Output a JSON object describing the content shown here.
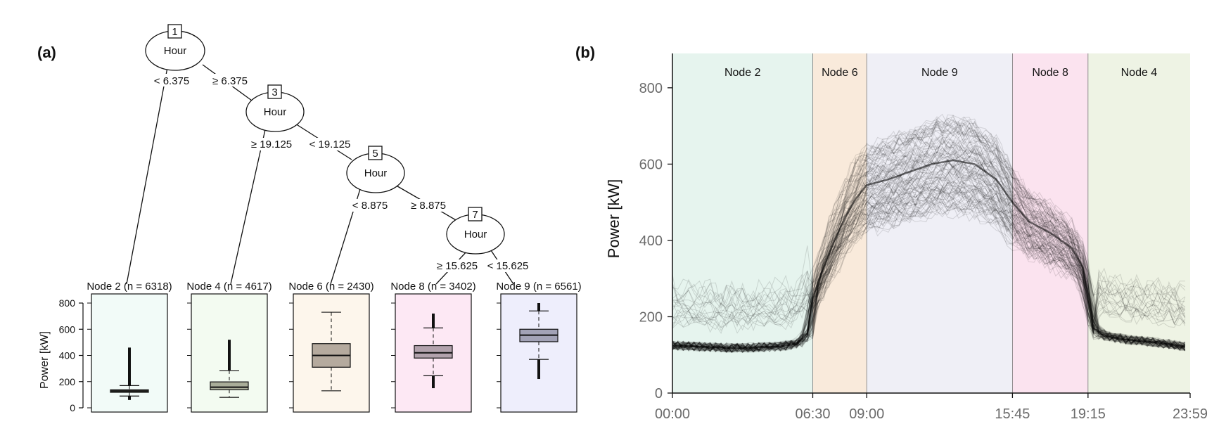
{
  "panels": {
    "a": "(a)",
    "b": "(b)"
  },
  "tree": {
    "nodes": [
      {
        "id": "1",
        "label": "Hour"
      },
      {
        "id": "3",
        "label": "Hour"
      },
      {
        "id": "5",
        "label": "Hour"
      },
      {
        "id": "7",
        "label": "Hour"
      }
    ],
    "splits": {
      "n1_left": "< 6.375",
      "n1_right": "≥ 6.375",
      "n3_left": "≥ 19.125",
      "n3_right": "< 19.125",
      "n5_left": "< 8.875",
      "n5_right": "≥ 8.875",
      "n7_left": "≥ 15.625",
      "n7_right": "< 15.625"
    }
  },
  "chart_data": [
    {
      "type": "box",
      "ylabel": "Power [kW]",
      "ylim": [
        0,
        900
      ],
      "yticks": [
        "0",
        "200",
        "400",
        "600",
        "800"
      ],
      "terminal_nodes": [
        {
          "label": "Node 2 (n = 6318)",
          "color": "#f2fbf8",
          "fill": "#8c8c7c",
          "whisker_low": 90,
          "q1": 118,
          "median": 128,
          "q3": 138,
          "whisker_high": 170,
          "outlier_low": 60,
          "outlier_high": 460
        },
        {
          "label": "Node 4 (n = 4617)",
          "color": "#f3fbf1",
          "fill": "#a9ad99",
          "whisker_low": 80,
          "q1": 138,
          "median": 158,
          "q3": 198,
          "whisker_high": 285,
          "outlier_low": 80,
          "outlier_high": 520
        },
        {
          "label": "Node 6 (n = 2430)",
          "color": "#fdf6ec",
          "fill": "#b5aa9e",
          "whisker_low": 130,
          "q1": 310,
          "median": 400,
          "q3": 490,
          "whisker_high": 730,
          "outlier_low": 130,
          "outlier_high": 730
        },
        {
          "label": "Node 8 (n = 3402)",
          "color": "#fde8f4",
          "fill": "#b2a2ac",
          "whisker_low": 245,
          "q1": 380,
          "median": 420,
          "q3": 475,
          "whisker_high": 610,
          "outlier_low": 150,
          "outlier_high": 720
        },
        {
          "label": "Node 9 (n = 6561)",
          "color": "#eeeefc",
          "fill": "#a2a2b6",
          "whisker_low": 370,
          "q1": 505,
          "median": 555,
          "q3": 600,
          "whisker_high": 740,
          "outlier_low": 220,
          "outlier_high": 800
        }
      ]
    },
    {
      "type": "line",
      "ylabel": "Power [kW]",
      "ylim": [
        0,
        890
      ],
      "yticks": [
        "0",
        "200",
        "400",
        "600",
        "800"
      ],
      "xticks": [
        "00:00",
        "06:30",
        "09:00",
        "15:45",
        "19:15",
        "23:59"
      ],
      "regions": [
        {
          "name": "Node 2",
          "from": 0,
          "to": 6.5,
          "color": "#e6f4ee"
        },
        {
          "name": "Node 6",
          "from": 6.5,
          "to": 9.0,
          "color": "#f9eadb"
        },
        {
          "name": "Node 9",
          "from": 9.0,
          "to": 15.75,
          "color": "#efeff6"
        },
        {
          "name": "Node 8",
          "from": 15.75,
          "to": 19.25,
          "color": "#fbe3ef"
        },
        {
          "name": "Node 4",
          "from": 19.25,
          "to": 23.98,
          "color": "#eef3e4"
        }
      ],
      "mean_profile": {
        "x": [
          0,
          1,
          2,
          3,
          4,
          5,
          5.8,
          6.3,
          6.5,
          7,
          7.5,
          8,
          8.5,
          9,
          10,
          11,
          12,
          13,
          14,
          15,
          15.75,
          16.5,
          17.5,
          18.5,
          19,
          19.25,
          19.5,
          20,
          21,
          22,
          23,
          23.98
        ],
        "y": [
          125,
          122,
          120,
          118,
          120,
          122,
          130,
          160,
          250,
          330,
          400,
          460,
          510,
          545,
          560,
          580,
          600,
          610,
          600,
          560,
          500,
          450,
          420,
          380,
          330,
          260,
          170,
          150,
          140,
          135,
          128,
          120
        ]
      }
    }
  ]
}
